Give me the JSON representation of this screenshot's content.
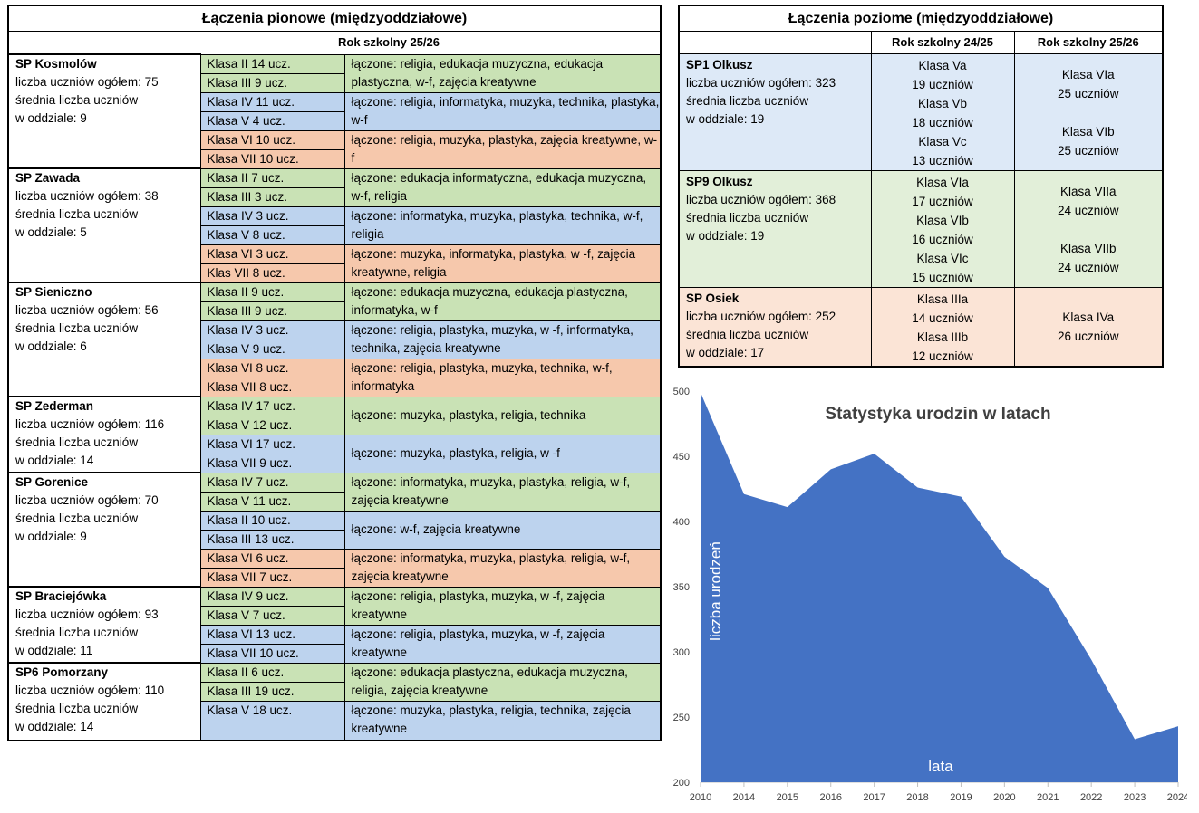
{
  "vertical": {
    "title": "Łączenia pionowe (międzyoddziałowe)",
    "subtitle": "Rok szkolny 25/26",
    "schools": [
      {
        "name": "SP Kosmolów",
        "info": [
          "liczba uczniów ogółem: 75",
          "średnia liczba uczniów",
          "w oddziale: 9"
        ],
        "groups": [
          {
            "color": "g",
            "classes": [
              "Klasa II 14 ucz.",
              "Klasa III 9 ucz."
            ],
            "combo": "łączone: religia, edukacja muzyczna,  edukacja plastyczna, w-f, zajęcia kreatywne"
          },
          {
            "color": "b",
            "classes": [
              "Klasa IV 11 ucz.",
              "Klasa V 4 ucz."
            ],
            "combo": "łączone: religia, informatyka, muzyka, technika, plastyka, w-f"
          },
          {
            "color": "o",
            "classes": [
              "Klasa VI 10 ucz.",
              "Klasa VII 10 ucz."
            ],
            "combo": "łączone: religia, muzyka, plastyka, zajęcia kreatywne, w-f"
          }
        ]
      },
      {
        "name": "SP Zawada",
        "info": [
          "liczba uczniów ogółem: 38",
          "średnia liczba uczniów",
          "w oddziale: 5"
        ],
        "groups": [
          {
            "color": "g",
            "classes": [
              "Klasa II 7 ucz.",
              "Klasa III 3 ucz."
            ],
            "combo": "łączone: edukacja informatyczna, edukacja muzyczna, w-f, religia"
          },
          {
            "color": "b",
            "classes": [
              "Klasa IV 3 ucz.",
              "Klasa V 8 ucz."
            ],
            "combo": "łączone: informatyka, muzyka, plastyka, technika, w-f, religia"
          },
          {
            "color": "o",
            "classes": [
              "Klasa VI 3 ucz.",
              "Klas VII 8 ucz."
            ],
            "combo": "łączone: muzyka, informatyka, plastyka, w -f, zajęcia kreatywne, religia"
          }
        ]
      },
      {
        "name": "SP Sieniczno",
        "info": [
          "liczba uczniów ogółem: 56",
          "średnia liczba uczniów",
          "w oddziale: 6"
        ],
        "groups": [
          {
            "color": "g",
            "classes": [
              "Klasa II 9 ucz.",
              "Klasa III 9 ucz."
            ],
            "combo": "łączone: edukacja muzyczna, edukacja plastyczna, informatyka, w-f"
          },
          {
            "color": "b",
            "classes": [
              "Klasa IV 3 ucz.",
              "Klasa V 9 ucz."
            ],
            "combo": "łączone: religia, plastyka, muzyka, w -f, informatyka, technika, zajęcia kreatywne"
          },
          {
            "color": "o",
            "classes": [
              "Klasa VI 8 ucz.",
              "Klasa VII 8 ucz."
            ],
            "combo": "łączone: religia, plastyka, muzyka, technika, w-f, informatyka"
          }
        ]
      },
      {
        "name": "SP Zederman",
        "info": [
          "liczba uczniów ogółem: 116",
          "średnia liczba uczniów",
          "w oddziale: 14"
        ],
        "groups": [
          {
            "color": "g",
            "classes": [
              "Klasa IV 17 ucz.",
              "Klasa V 12 ucz."
            ],
            "combo": "łączone: muzyka, plastyka, religia, technika",
            "center": true
          },
          {
            "color": "b",
            "classes": [
              "Klasa VI 17 ucz.",
              "Klasa VII 9 ucz."
            ],
            "combo": "łączone: muzyka, plastyka, religia, w -f",
            "center": true
          }
        ]
      },
      {
        "name": "SP Gorenice",
        "info": [
          "liczba uczniów ogółem: 70",
          "średnia liczba uczniów",
          "w oddziale: 9"
        ],
        "groups": [
          {
            "color": "g",
            "classes": [
              "Klasa IV 7 ucz.",
              "Klasa V 11 ucz."
            ],
            "combo": "łączone: informatyka, muzyka, plastyka, religia, w-f, zajęcia kreatywne"
          },
          {
            "color": "b",
            "classes": [
              "Klasa II 10 ucz.",
              "Klasa III 13 ucz."
            ],
            "combo": "łączone: w-f, zajęcia kreatywne",
            "center": true
          },
          {
            "color": "o",
            "classes": [
              "Klasa VI 6 ucz.",
              "Klasa VII 7 ucz."
            ],
            "combo": "łączone: informatyka, muzyka, plastyka, religia, w-f, zajęcia kreatywne"
          }
        ]
      },
      {
        "name": "SP Braciejówka",
        "info": [
          "liczba uczniów ogółem: 93",
          "średnia liczba uczniów",
          "w oddziale: 11"
        ],
        "groups": [
          {
            "color": "g",
            "classes": [
              "Klasa IV 9 ucz.",
              "Klasa V 7 ucz."
            ],
            "combo": "łączone: religia, plastyka, muzyka, w -f, zajęcia kreatywne"
          },
          {
            "color": "b",
            "classes": [
              "Klasa VI 13 ucz.",
              "Klasa VII 10 ucz."
            ],
            "combo": "łączone: religia, plastyka, muzyka, w -f, zajęcia kreatywne"
          }
        ]
      },
      {
        "name": "SP6 Pomorzany",
        "info": [
          "liczba uczniów ogółem: 110",
          "średnia liczba uczniów",
          "w oddziale: 14"
        ],
        "groups": [
          {
            "color": "g",
            "classes": [
              "Klasa II 6 ucz.",
              "Klasa III 19 ucz."
            ],
            "combo": "łączone: edukacja plastyczna, edukacja muzyczna, religia, zajęcia kreatywne"
          },
          {
            "color": "b",
            "classes": [
              "Klasa V 18 ucz."
            ],
            "combo": "łączone: muzyka, plastyka, religia, technika, zajęcia kreatywne"
          }
        ]
      }
    ]
  },
  "horizontal": {
    "title": "Łączenia poziome (międzyoddziałowe)",
    "year1": "Rok szkolny 24/25",
    "year2": "Rok szkolny 25/26",
    "schools": [
      {
        "color": "lb",
        "name": "SP1 Olkusz",
        "info": [
          "liczba uczniów ogółem: 323",
          "średnia liczba uczniów",
          "w oddziale: 19"
        ],
        "y1": [
          "Klasa Va",
          "19 uczniów",
          "Klasa Vb",
          "18 uczniów",
          "Klasa Vc",
          "13 uczniów"
        ],
        "y2": [
          "Klasa VIa",
          "25 uczniów",
          "",
          "Klasa VIb",
          "25 uczniów"
        ]
      },
      {
        "color": "lg",
        "name": "SP9 Olkusz",
        "info": [
          "liczba uczniów ogółem: 368",
          "średnia liczba uczniów",
          "w oddziale: 19"
        ],
        "y1": [
          "Klasa VIa",
          "17 uczniów",
          "Klasa VIb",
          "16 uczniów",
          "Klasa VIc",
          "15 uczniów"
        ],
        "y2": [
          "Klasa VIIa",
          "24 uczniów",
          "",
          "Klasa VIIb",
          "24 uczniów"
        ]
      },
      {
        "color": "lo",
        "name": "SP Osiek",
        "info": [
          "liczba uczniów ogółem: 252",
          "średnia liczba uczniów",
          "w oddziale: 17"
        ],
        "y1": [
          "Klasa IIIa",
          "14 uczniów",
          "Klasa IIIb",
          "12 uczniów"
        ],
        "y2": [
          "Klasa IVa",
          "26 uczniów"
        ]
      }
    ]
  },
  "chart_data": {
    "type": "area",
    "title": "Statystyka urodzin w latach",
    "xlabel": "lata",
    "ylabel": "liczba urodzeń",
    "x": [
      "2010",
      "2014",
      "2015",
      "2016",
      "2017",
      "2018",
      "2019",
      "2020",
      "2021",
      "2022",
      "2023",
      "2024"
    ],
    "values": [
      499,
      421,
      411,
      440,
      452,
      426,
      419,
      373,
      349,
      294,
      233,
      243
    ],
    "ylim": [
      200,
      500
    ],
    "yticks": [
      200,
      250,
      300,
      350,
      400,
      450,
      500
    ],
    "color": "#4472c4",
    "grid": false
  }
}
